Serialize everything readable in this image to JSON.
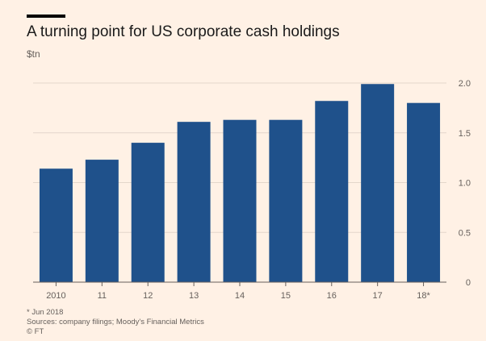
{
  "title": "A turning point for US corporate cash holdings",
  "unit_label": "$tn",
  "footnote": "* Jun 2018",
  "sources": "Sources: company filings; Moody's Financial Metrics",
  "copyright": "© FT",
  "colors": {
    "bar": "#1f518b",
    "background": "#fff1e5",
    "grid": "#e3d6cb",
    "axis": "#66605c",
    "text": "#66605c"
  },
  "chart_data": {
    "type": "bar",
    "categories": [
      "2010",
      "11",
      "12",
      "13",
      "14",
      "15",
      "16",
      "17",
      "18*"
    ],
    "values": [
      1.14,
      1.23,
      1.4,
      1.61,
      1.63,
      1.63,
      1.82,
      1.99,
      1.8
    ],
    "title": "A turning point for US corporate cash holdings",
    "ylabel": "$tn",
    "ylim": [
      0,
      2.0
    ],
    "yticks": [
      0,
      0.5,
      1.0,
      1.5,
      2.0
    ],
    "ytick_labels": [
      "0",
      "0.5",
      "1.0",
      "1.5",
      "2.0"
    ],
    "grid": true,
    "y_axis_position": "right"
  }
}
